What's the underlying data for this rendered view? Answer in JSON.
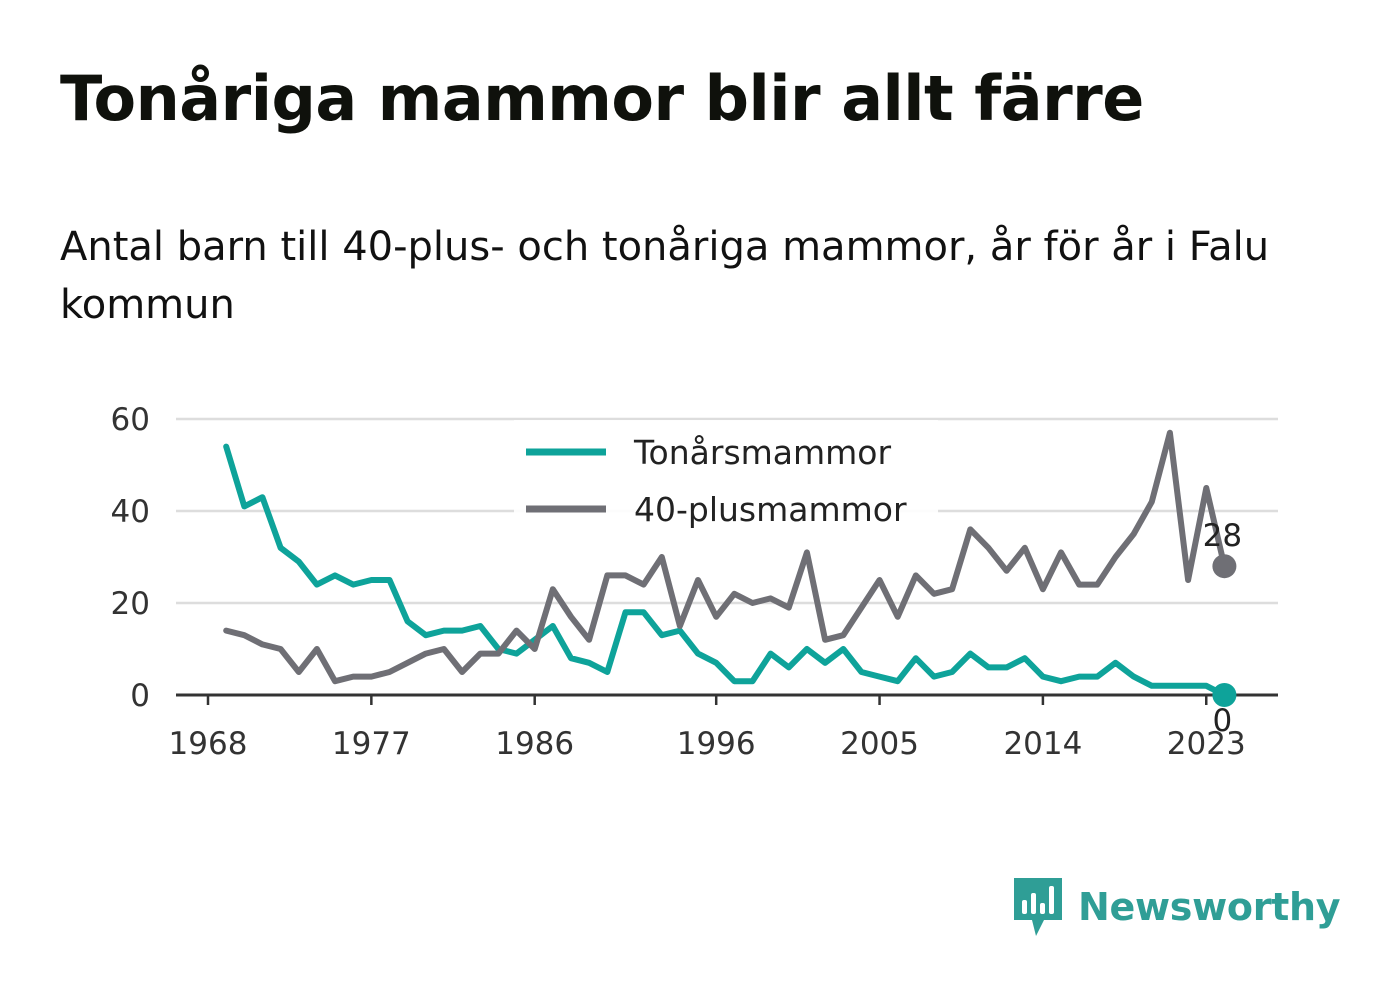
{
  "header": {
    "title": "Tonåriga mammor blir allt färre",
    "subtitle": "Antal barn till 40-plus- och tonåriga mammor, år för år i Falu kommun"
  },
  "brand": {
    "name": "Newsworthy",
    "icon": "newsworthy-logo-icon",
    "color": "#2f9e96"
  },
  "chart_data": {
    "type": "line",
    "title": "Tonåriga mammor blir allt färre",
    "subtitle": "Antal barn till 40-plus- och tonåriga mammor, år för år i Falu kommun",
    "xlabel": "",
    "ylabel": "",
    "xlim": [
      1968,
      2024
    ],
    "ylim": [
      0,
      60
    ],
    "x_ticks": [
      "1968",
      "1977",
      "1986",
      "1996",
      "2005",
      "2014",
      "2023"
    ],
    "y_ticks": [
      "0",
      "20",
      "40",
      "60"
    ],
    "grid": true,
    "legend_position": "top-center",
    "x": [
      1969,
      1970,
      1971,
      1972,
      1973,
      1974,
      1975,
      1976,
      1977,
      1978,
      1979,
      1980,
      1981,
      1982,
      1983,
      1984,
      1985,
      1986,
      1987,
      1988,
      1989,
      1990,
      1991,
      1992,
      1993,
      1994,
      1995,
      1996,
      1997,
      1998,
      1999,
      2000,
      2001,
      2002,
      2003,
      2004,
      2005,
      2006,
      2007,
      2008,
      2009,
      2010,
      2011,
      2012,
      2013,
      2014,
      2015,
      2016,
      2017,
      2018,
      2019,
      2020,
      2021,
      2022,
      2023,
      2024
    ],
    "series": [
      {
        "name": "Tonårsmammor",
        "color": "#0ea39a",
        "values": [
          54,
          41,
          43,
          32,
          29,
          24,
          26,
          24,
          25,
          25,
          16,
          13,
          14,
          14,
          15,
          10,
          9,
          12,
          15,
          8,
          7,
          5,
          18,
          18,
          13,
          14,
          9,
          7,
          3,
          3,
          9,
          6,
          10,
          7,
          10,
          5,
          4,
          3,
          8,
          4,
          5,
          9,
          6,
          6,
          8,
          4,
          3,
          4,
          4,
          7,
          4,
          2,
          2,
          2,
          2,
          0
        ],
        "end_label": "0"
      },
      {
        "name": "40-plusmammor",
        "color": "#6f6f75",
        "values": [
          14,
          13,
          11,
          10,
          5,
          10,
          3,
          4,
          4,
          5,
          7,
          9,
          10,
          5,
          9,
          9,
          14,
          10,
          23,
          17,
          12,
          26,
          26,
          24,
          30,
          15,
          25,
          17,
          22,
          20,
          21,
          19,
          31,
          12,
          13,
          19,
          25,
          17,
          26,
          22,
          23,
          36,
          32,
          27,
          32,
          23,
          31,
          24,
          24,
          30,
          35,
          42,
          57,
          25,
          45,
          28
        ],
        "end_label": "28"
      }
    ]
  }
}
